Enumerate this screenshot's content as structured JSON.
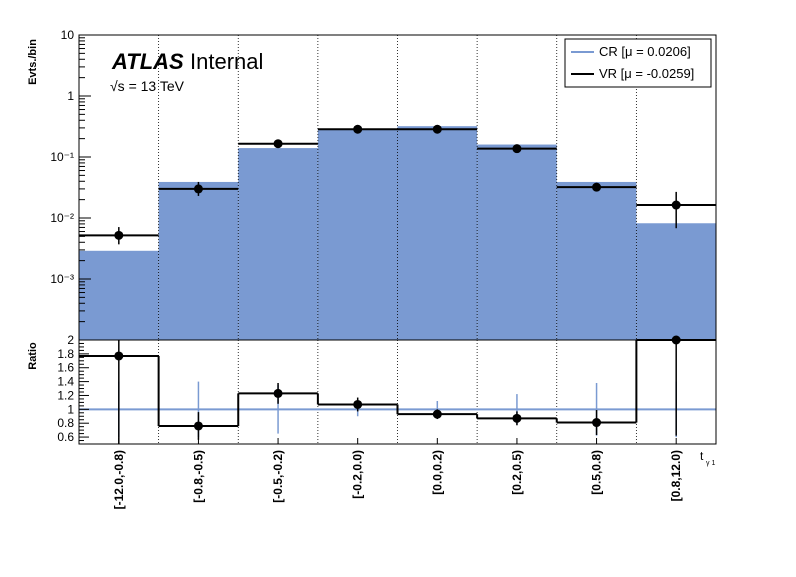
{
  "branding": {
    "atlas": "ATLAS",
    "status": "Internal",
    "energy": "√s = 13 TeV"
  },
  "chart_data": [
    {
      "type": "bar",
      "panel": "main",
      "ylabel": "Evts./bin",
      "yscale": "log",
      "ylim": [
        0.0001,
        10
      ],
      "ytick_labels": [
        {
          "value": 10,
          "label": "10"
        },
        {
          "value": 1,
          "label": "1"
        },
        {
          "value": 0.1,
          "label": "10⁻¹"
        },
        {
          "value": 0.01,
          "label": "10⁻²"
        },
        {
          "value": 0.001,
          "label": "10⁻³"
        }
      ],
      "categories": [
        "[-12.0,-0.8)",
        "[-0.8,-0.5)",
        "[-0.5,-0.2)",
        "[-0.2,0.0)",
        "[0.0,0.2)",
        "[0.2,0.5)",
        "[0.5,0.8)",
        "[0.8,12.0)"
      ],
      "xlabel": "t",
      "xlabel_sub": "γ 1",
      "legend_position": "top-right",
      "series": [
        {
          "name": "CR [μ = 0.0206]",
          "style": "filled-histogram",
          "color": "#7a9ad2",
          "values": [
            0.0029,
            0.039,
            0.14,
            0.29,
            0.32,
            0.16,
            0.039,
            0.0082
          ]
        },
        {
          "name": "VR [μ = -0.0259]",
          "style": "step-with-points",
          "color": "#000000",
          "values": [
            0.0052,
            0.03,
            0.165,
            0.285,
            0.285,
            0.137,
            0.032,
            0.0163
          ],
          "err_low": [
            0.0015,
            0.007,
            0.019,
            0.028,
            0.028,
            0.017,
            0.004,
            0.0095
          ],
          "err_high": [
            0.0019,
            0.009,
            0.023,
            0.032,
            0.032,
            0.02,
            0.005,
            0.0105
          ]
        }
      ]
    },
    {
      "type": "bar",
      "panel": "ratio",
      "ylabel": "Ratio",
      "ylim": [
        0.5,
        2.0
      ],
      "yticks": [
        "0.6",
        "0.8",
        "1",
        "1.2",
        "1.4",
        "1.6",
        "1.8",
        "2"
      ],
      "categories": [
        "[-12.0,-0.8)",
        "[-0.8,-0.5)",
        "[-0.5,-0.2)",
        "[-0.2,0.0)",
        "[0.0,0.2)",
        "[0.2,0.5)",
        "[0.5,0.8)",
        "[0.8,12.0)"
      ],
      "reference_line": 1,
      "series": [
        {
          "name": "",
          "style": "step-with-points",
          "color": "#000000",
          "values": [
            1.77,
            0.76,
            1.23,
            1.07,
            0.93,
            0.87,
            0.81,
            2.0
          ],
          "err_low": [
            1.27,
            0.2,
            0.15,
            0.1,
            0.07,
            0.1,
            0.18,
            1.38
          ],
          "err_high": [
            0.5,
            0.2,
            0.15,
            0.1,
            0.07,
            0.1,
            0.18,
            0.2
          ],
          "ref_err": [
            0.4,
            0.4,
            0.35,
            0.1,
            0.12,
            0.22,
            0.38,
            0.4
          ]
        }
      ]
    }
  ]
}
